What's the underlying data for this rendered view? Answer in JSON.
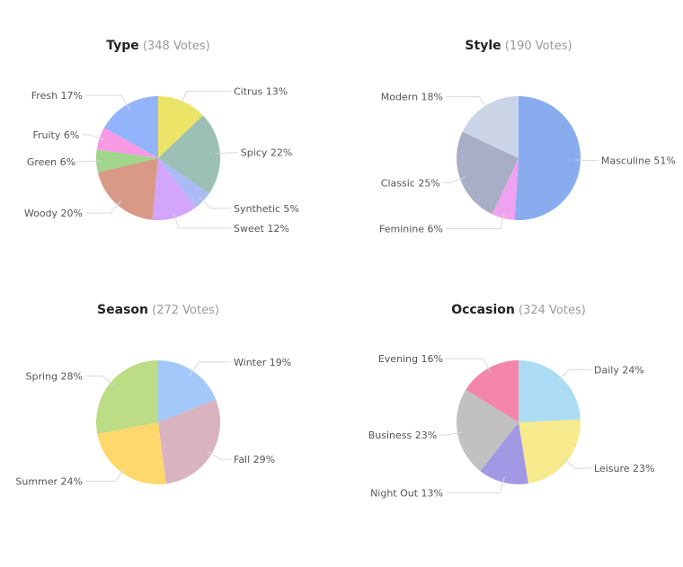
{
  "chart_data": [
    {
      "type": "pie",
      "title": "Type",
      "subtitle": "(348 Votes)",
      "slices": [
        {
          "label": "Citrus 13%",
          "value": 13,
          "color": "#ece466"
        },
        {
          "label": "Spicy 22%",
          "value": 22,
          "color": "#9cbfb6"
        },
        {
          "label": "Synthetic 5%",
          "value": 5,
          "color": "#a9baf4"
        },
        {
          "label": "Sweet 12%",
          "value": 12,
          "color": "#d3a6fb"
        },
        {
          "label": "Woody 20%",
          "value": 20,
          "color": "#d89a86"
        },
        {
          "label": "Green 6%",
          "value": 6,
          "color": "#9fd68b"
        },
        {
          "label": "Fruity 6%",
          "value": 6,
          "color": "#f899e6"
        },
        {
          "label": "Fresh 17%",
          "value": 17,
          "color": "#93b4fb"
        }
      ]
    },
    {
      "type": "pie",
      "title": "Style",
      "subtitle": "(190 Votes)",
      "slices": [
        {
          "label": "Masculine 51%",
          "value": 51,
          "color": "#88acee"
        },
        {
          "label": "Feminine 6%",
          "value": 6,
          "color": "#efa2f0"
        },
        {
          "label": "Classic 25%",
          "value": 25,
          "color": "#a9aec7"
        },
        {
          "label": "Modern 18%",
          "value": 18,
          "color": "#ccd5e8"
        }
      ]
    },
    {
      "type": "pie",
      "title": "Season",
      "subtitle": "(272 Votes)",
      "slices": [
        {
          "label": "Winter 19%",
          "value": 19,
          "color": "#a3c9fb"
        },
        {
          "label": "Fall 29%",
          "value": 29,
          "color": "#d9b3bf"
        },
        {
          "label": "Summer 24%",
          "value": 24,
          "color": "#fdd86c"
        },
        {
          "label": "Spring 28%",
          "value": 28,
          "color": "#bcdc85"
        }
      ]
    },
    {
      "type": "pie",
      "title": "Occasion",
      "subtitle": "(324 Votes)",
      "slices": [
        {
          "label": "Daily 24%",
          "value": 24,
          "color": "#abdcf3"
        },
        {
          "label": "Leisure 23%",
          "value": 23,
          "color": "#f6ea8c"
        },
        {
          "label": "Night Out 13%",
          "value": 13,
          "color": "#a299e4"
        },
        {
          "label": "Business 23%",
          "value": 23,
          "color": "#c1c1c1"
        },
        {
          "label": "Evening 16%",
          "value": 16,
          "color": "#f486ab"
        }
      ]
    }
  ]
}
